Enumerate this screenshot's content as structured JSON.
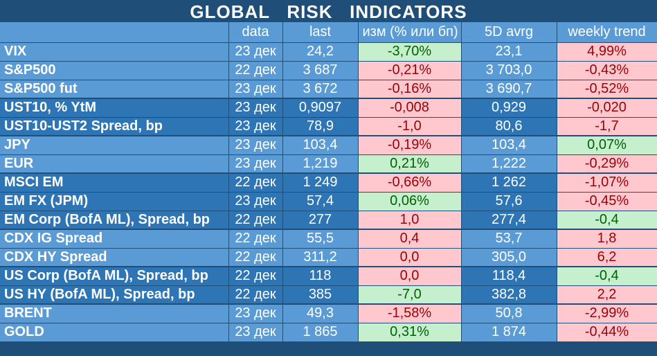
{
  "title": "GLOBAL   RISK   INDICATORS",
  "headers": [
    "",
    "data",
    "last",
    "изм (% или бп)",
    "5D avrg",
    "weekly trend"
  ],
  "rows": [
    {
      "name": "VIX",
      "date": "23 дек",
      "last": "24,2",
      "change": "-3,70%",
      "change_tone": "pos",
      "avg": "23,1",
      "trend": "4,99%",
      "trend_tone": "neg",
      "group": "light"
    },
    {
      "name": "S&P500",
      "date": "22 дек",
      "last": "3 687",
      "change": "-0,21%",
      "change_tone": "neg",
      "avg": "3 703,0",
      "trend": "-0,43%",
      "trend_tone": "neg",
      "group": "light"
    },
    {
      "name": "S&P500 fut",
      "date": "23 дек",
      "last": "3 672",
      "change": "-0,16%",
      "change_tone": "neg",
      "avg": "3 690,7",
      "trend": "-0,52%",
      "trend_tone": "neg",
      "group": "light",
      "end": true
    },
    {
      "name": "UST10, % YtM",
      "date": "23 дек",
      "last": "0,9097",
      "change": "-0,008",
      "change_tone": "neg",
      "avg": "0,929",
      "trend": "-0,020",
      "trend_tone": "neg",
      "group": "dark"
    },
    {
      "name": "UST10-UST2 Spread, bp",
      "date": "23 дек",
      "last": "78,9",
      "change": "-1,0",
      "change_tone": "neg",
      "avg": "80,6",
      "trend": "-1,7",
      "trend_tone": "neg",
      "group": "dark",
      "end": true
    },
    {
      "name": "JPY",
      "date": "23 дек",
      "last": "103,4",
      "change": "-0,19%",
      "change_tone": "neg",
      "avg": "103,4",
      "trend": "0,07%",
      "trend_tone": "pos",
      "group": "light"
    },
    {
      "name": "EUR",
      "date": "23 дек",
      "last": "1,219",
      "change": "0,21%",
      "change_tone": "pos",
      "avg": "1,222",
      "trend": "-0,29%",
      "trend_tone": "neg",
      "group": "light",
      "end": true
    },
    {
      "name": "MSCI EM",
      "date": "22 дек",
      "last": "1 249",
      "change": "-0,66%",
      "change_tone": "neg",
      "avg": "1 262",
      "trend": "-1,07%",
      "trend_tone": "neg",
      "group": "dark"
    },
    {
      "name": "EM FX (JPM)",
      "date": "23 дек",
      "last": "57,4",
      "change": "0,06%",
      "change_tone": "pos",
      "avg": "57,6",
      "trend": "-0,45%",
      "trend_tone": "neg",
      "group": "dark"
    },
    {
      "name": "EM Corp (BofA ML), Spread, bp",
      "date": "22 дек",
      "last": "277",
      "change": "1,0",
      "change_tone": "neg",
      "avg": "277,4",
      "trend": "-0,4",
      "trend_tone": "pos",
      "group": "dark",
      "end": true
    },
    {
      "name": "CDX IG Spread",
      "date": "22 дек",
      "last": "55,5",
      "change": "0,4",
      "change_tone": "neg",
      "avg": "53,7",
      "trend": "1,8",
      "trend_tone": "neg",
      "group": "light"
    },
    {
      "name": "CDX HY Spread",
      "date": "22 дек",
      "last": "311,2",
      "change": "0,0",
      "change_tone": "neg",
      "avg": "305,0",
      "trend": "6,2",
      "trend_tone": "neg",
      "group": "light",
      "end": true
    },
    {
      "name": "US Corp (BofA ML), Spread, bp",
      "date": "22 дек",
      "last": "118",
      "change": "0,0",
      "change_tone": "neg",
      "avg": "118,4",
      "trend": "-0,4",
      "trend_tone": "pos",
      "group": "dark"
    },
    {
      "name": "US HY (BofA ML), Spread, bp",
      "date": "22 дек",
      "last": "385",
      "change": "-7,0",
      "change_tone": "pos",
      "avg": "382,8",
      "trend": "2,2",
      "trend_tone": "neg",
      "group": "dark",
      "end": true
    },
    {
      "name": "BRENT",
      "date": "23 дек",
      "last": "49,3",
      "change": "-1,58%",
      "change_tone": "neg",
      "avg": "50,8",
      "trend": "-2,99%",
      "trend_tone": "neg",
      "group": "light"
    },
    {
      "name": "GOLD",
      "date": "23 дек",
      "last": "1 865",
      "change": "0,31%",
      "change_tone": "pos",
      "avg": "1 874",
      "trend": "-0,44%",
      "trend_tone": "neg",
      "group": "light"
    }
  ]
}
